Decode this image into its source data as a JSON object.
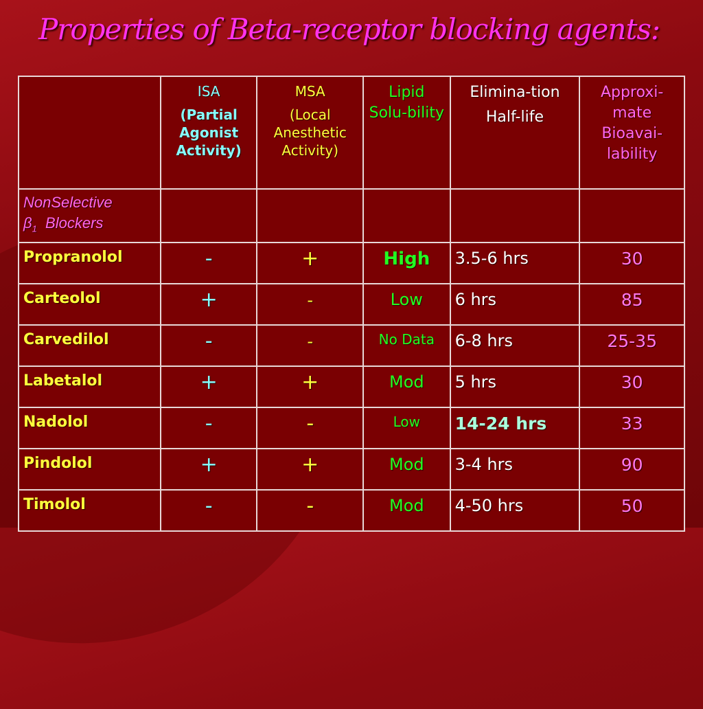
{
  "title": "Properties of Beta-receptor blocking agents:",
  "headers": {
    "isa_line1": "ISA",
    "isa_line2": "(Partial Agonist Activity)",
    "msa_line1": "MSA",
    "msa_line2": "(Local Anesthetic Activity)",
    "lipid": "Lipid Solu-bility",
    "elim_line1": "Elimina-tion",
    "elim_line2": "Half-life",
    "bio": "Approxi-mate Bioavai-lability"
  },
  "section": {
    "line1": "NonSelective",
    "beta": "β",
    "sub": "1",
    "line2_rest": "Blockers"
  },
  "rows": [
    {
      "drug": "Propranolol",
      "isa": "-",
      "msa": "+",
      "lipid": "High",
      "half_life": "3.5-6 hrs",
      "bio": "30"
    },
    {
      "drug": "Carteolol",
      "isa": "+",
      "msa": "-",
      "lipid": "Low",
      "half_life": "6 hrs",
      "bio": "85"
    },
    {
      "drug": "Carvedilol",
      "isa": "-",
      "msa": "-",
      "lipid": "No Data",
      "half_life": "6-8 hrs",
      "bio": "25-35"
    },
    {
      "drug": "Labetalol",
      "isa": "+",
      "msa": "+",
      "lipid": "Mod",
      "half_life": "5 hrs",
      "bio": "30"
    },
    {
      "drug": "Nadolol",
      "isa": "-",
      "msa": "-",
      "lipid": "Low",
      "half_life": "14-24 hrs",
      "bio": "33"
    },
    {
      "drug": "Pindolol",
      "isa": "+",
      "msa": "+",
      "lipid": "Mod",
      "half_life": "3-4 hrs",
      "bio": "90"
    },
    {
      "drug": "Timolol",
      "isa": "-",
      "msa": "-",
      "lipid": "Mod",
      "half_life": "4-50 hrs",
      "bio": "50"
    }
  ],
  "colors": {
    "background": "#8c0a10",
    "title": "#ff33ee",
    "drug_names": "#ffff3c",
    "isa": "#86ffff",
    "msa": "#ffff3c",
    "lipid": "#22ff22",
    "bioavailability": "#ff66ee"
  }
}
